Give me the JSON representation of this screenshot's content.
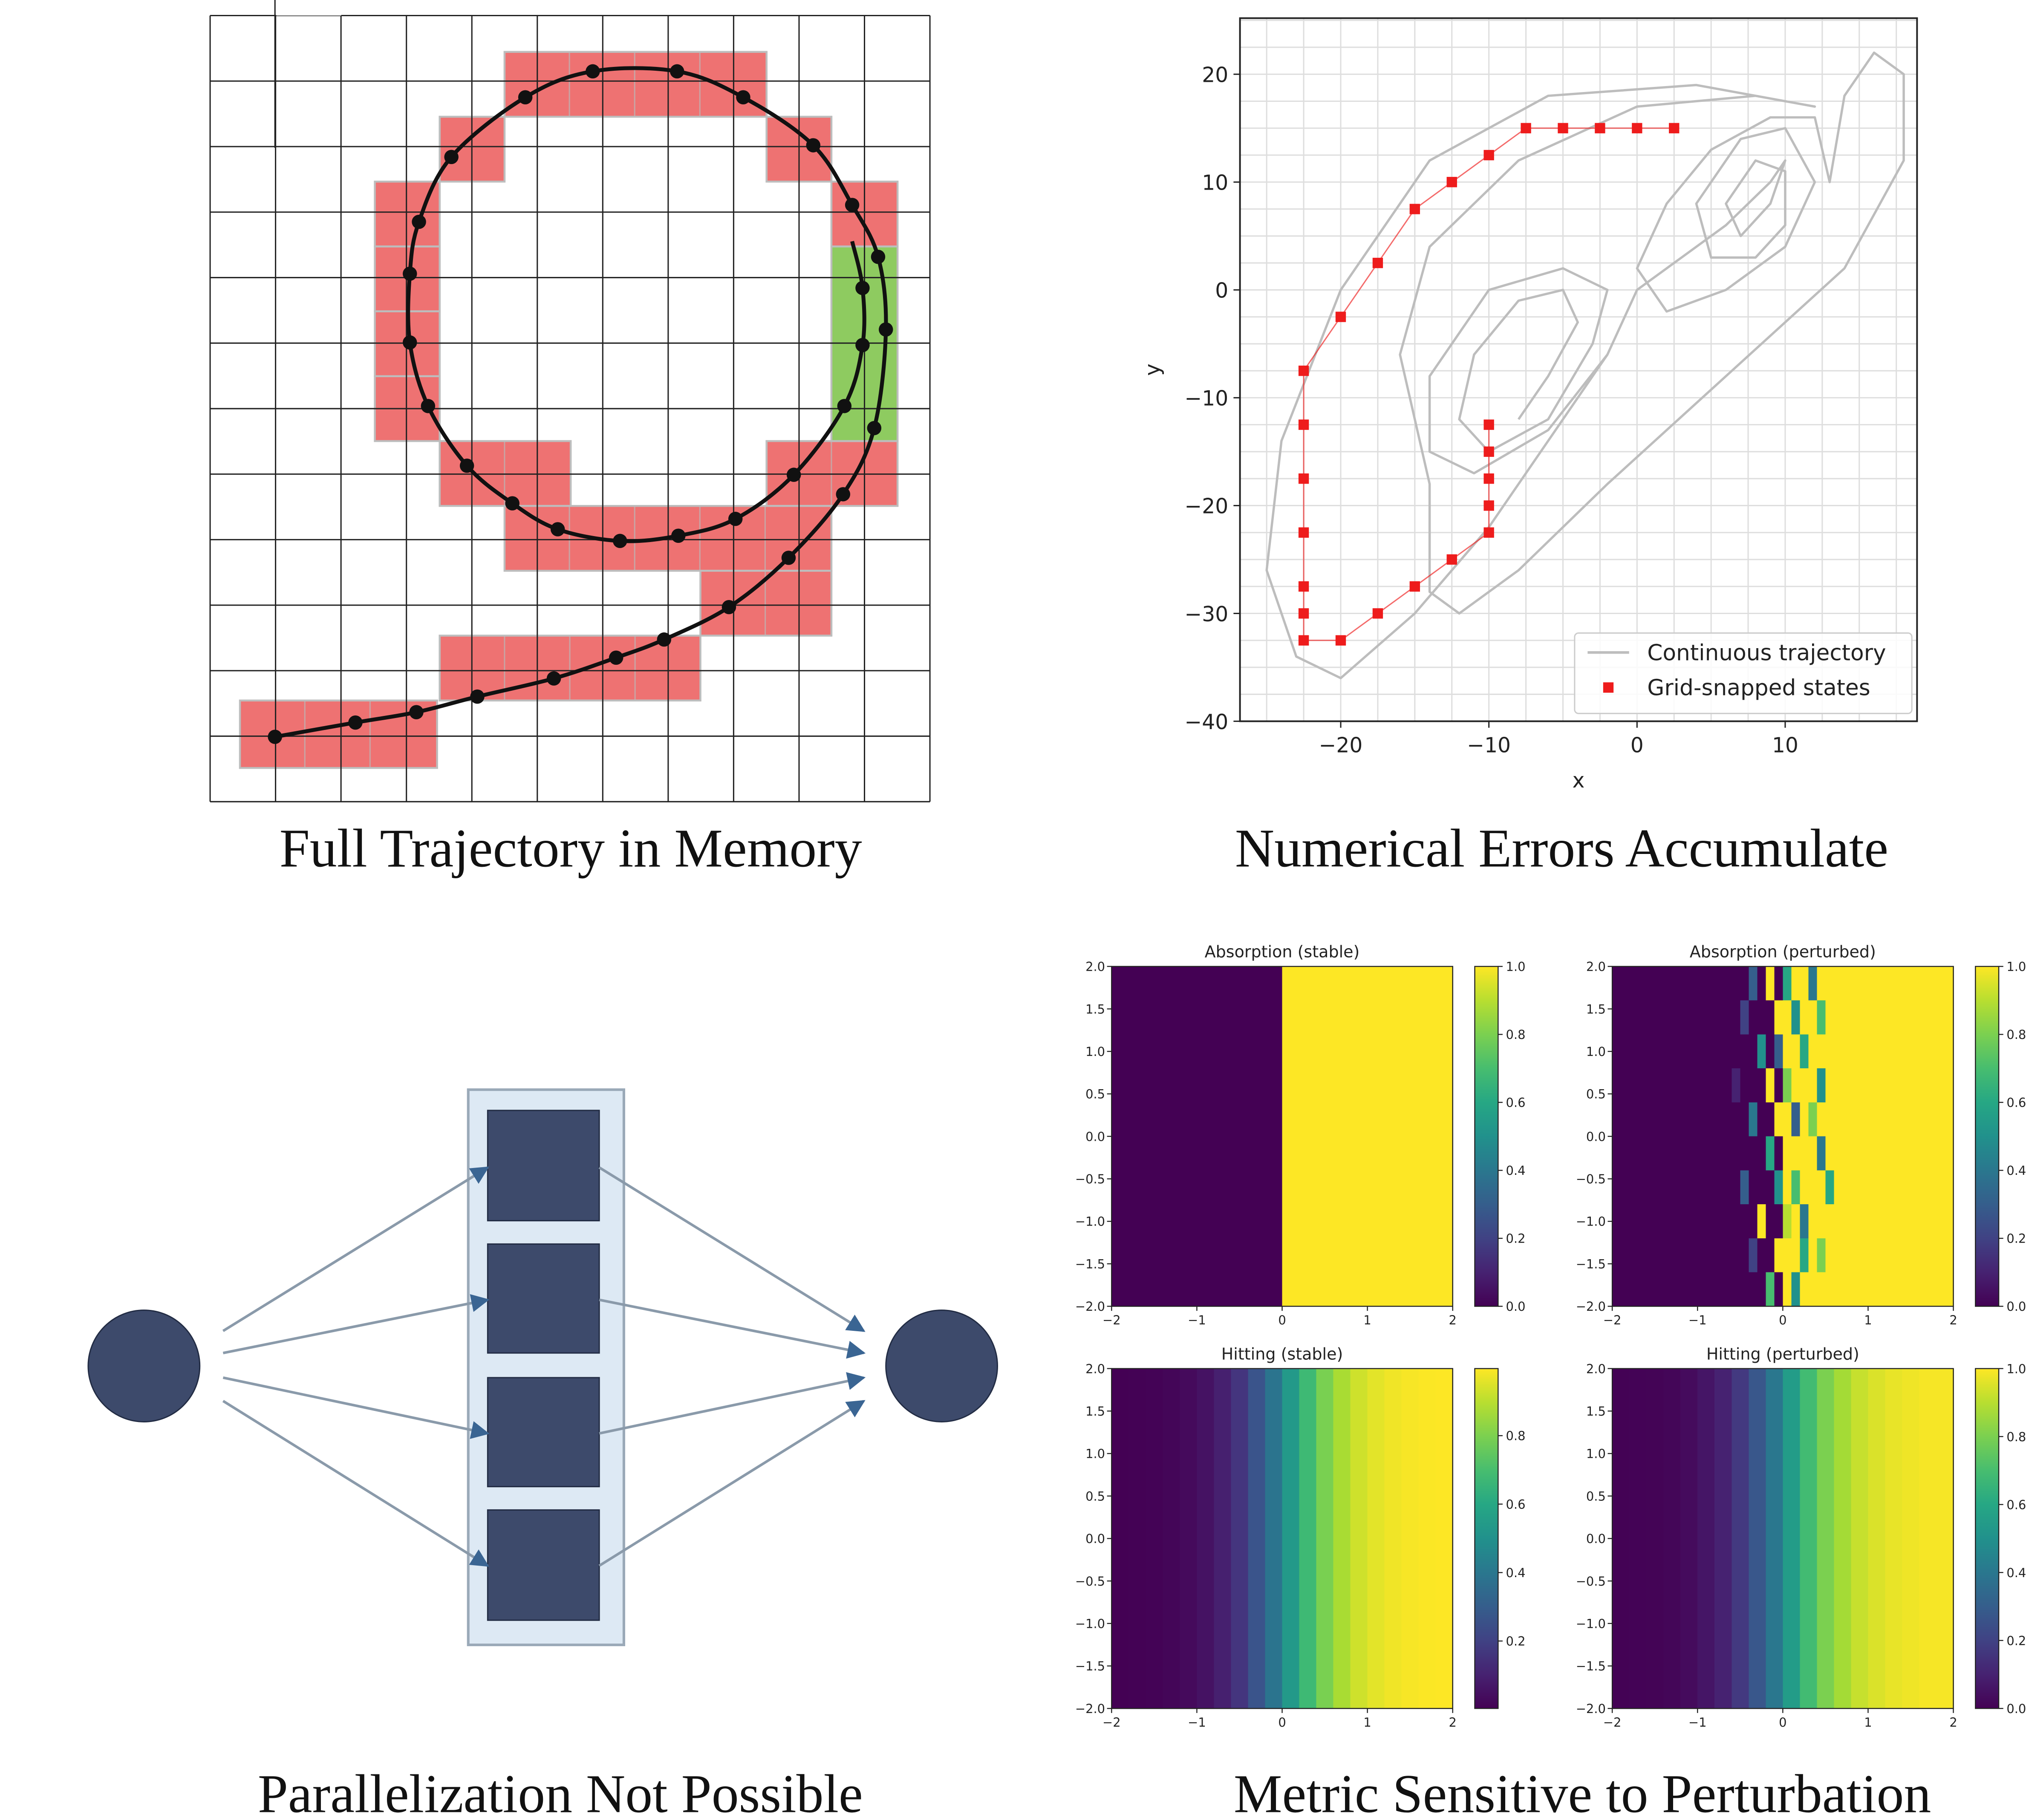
{
  "captions": [
    "Full Trajectory in Memory",
    "Numerical Errors Accumulate",
    "Parallelization Not Possible",
    "Metric Sensitive to Perturbation"
  ],
  "chart_data": [
    {
      "type": "line",
      "xlabel": "x",
      "ylabel": "y",
      "legend": "lower right",
      "grid": true,
      "xlim": [
        -26.8,
        18.9
      ],
      "ylim": [
        -40,
        25.2
      ],
      "xticks": [
        {
          "value": -20,
          "label": "−20"
        },
        {
          "value": -10,
          "label": "−10"
        },
        0,
        10
      ],
      "yticks": [
        {
          "value": -40,
          "label": "−40"
        },
        {
          "value": -30,
          "label": "−30"
        },
        {
          "value": -20,
          "label": "−20"
        },
        {
          "value": -10,
          "label": "−10"
        },
        0,
        10,
        20
      ],
      "xgrid": [
        -25,
        -22.5,
        -20,
        -17.5,
        -15,
        -12.5,
        -10,
        -7.5,
        -5,
        -2.5,
        0,
        2.5,
        5,
        7.5,
        10,
        12.5,
        15,
        17.5
      ],
      "ygrid": [
        -40,
        -37.5,
        -35,
        -32.5,
        -30,
        -27.5,
        -25,
        -22.5,
        -20,
        -17.5,
        -15,
        -12.5,
        -10,
        -7.5,
        -5,
        -2.5,
        0,
        2.5,
        5,
        7.5,
        10,
        12.5,
        15,
        17.5,
        20,
        22.5,
        25
      ],
      "series": [
        {
          "name": "Continuous trajectory",
          "color": "#bdbdbd",
          "x": [
            -8,
            -6,
            -4,
            -5,
            -8,
            -11,
            -12,
            -10,
            -6,
            -3,
            -2,
            -5,
            -10,
            -14,
            -14,
            -11,
            -6,
            -2,
            0,
            3,
            6,
            9,
            10,
            9,
            7,
            6,
            8,
            10,
            10,
            8,
            5,
            4,
            7,
            10,
            12,
            10,
            6,
            2,
            0,
            2,
            5,
            9,
            12,
            13,
            14,
            16,
            18,
            18,
            14,
            6,
            -2,
            -8,
            -12,
            -14,
            -14,
            -16,
            -14,
            -8,
            0,
            8,
            12,
            4,
            -6,
            -14,
            -20,
            -24,
            -25,
            -23,
            -20,
            -15,
            -10,
            -6,
            -2,
            0
          ],
          "values": [
            -12,
            -8,
            -3,
            0,
            -1,
            -6,
            -12,
            -15,
            -12,
            -5,
            0,
            2,
            0,
            -8,
            -15,
            -17,
            -13,
            -6,
            0,
            3,
            6,
            10,
            12,
            8,
            5,
            8,
            12,
            11,
            6,
            3,
            3,
            8,
            14,
            15,
            10,
            4,
            0,
            -2,
            2,
            8,
            13,
            16,
            16,
            10,
            18,
            22,
            20,
            12,
            2,
            -8,
            -18,
            -26,
            -30,
            -28,
            -18,
            -6,
            4,
            12,
            17,
            18,
            17,
            19,
            18,
            12,
            0,
            -14,
            -26,
            -34,
            -36,
            -30,
            -22,
            -14,
            -6,
            0
          ]
        },
        {
          "name": "Grid-snapped states",
          "color": "#ee1c1c",
          "marker": "square",
          "x": [
            2.5,
            0,
            -2.5,
            -5,
            -7.5,
            -10,
            -12.5,
            -15,
            -17.5,
            -20,
            -22.5,
            -22.5,
            -22.5,
            -22.5,
            -22.5,
            -22.5,
            -22.5,
            -20,
            -17.5,
            -15,
            -12.5,
            -10,
            -10,
            -10,
            -10,
            -10
          ],
          "values": [
            15,
            15,
            15,
            15,
            15,
            12.5,
            10,
            7.5,
            2.5,
            -2.5,
            -7.5,
            -12.5,
            -17.5,
            -22.5,
            -27.5,
            -30,
            -32.5,
            -32.5,
            -30,
            -27.5,
            -25,
            -22.5,
            -20,
            -17.5,
            -15,
            -12.5
          ]
        }
      ]
    },
    {
      "type": "heatmap",
      "title": "Absorption (stable)",
      "colormap": "viridis",
      "xlim": [
        -2,
        2
      ],
      "ylim": [
        -2,
        2
      ],
      "clim": [
        0,
        1
      ],
      "xticks": [
        {
          "value": -2,
          "label": "−2"
        },
        {
          "value": -1,
          "label": "−1"
        },
        0,
        1,
        2
      ],
      "yticks": [
        {
          "value": 2,
          "label": "2.0"
        },
        1.5,
        {
          "value": 1,
          "label": "1.0"
        },
        0.5,
        {
          "value": 0,
          "label": "0.0"
        },
        {
          "value": -0.5,
          "label": "−0.5"
        },
        {
          "value": -1,
          "label": "−1.0"
        },
        {
          "value": -1.5,
          "label": "−1.5"
        },
        {
          "value": -2,
          "label": "−2.0"
        }
      ],
      "cticks": [
        {
          "value": 0,
          "label": "0.0"
        },
        0.2,
        0.4,
        0.6,
        0.8,
        {
          "value": 1,
          "label": "1.0"
        }
      ],
      "z": [
        [
          0,
          1
        ]
      ]
    },
    {
      "type": "heatmap",
      "title": "Absorption (perturbed)",
      "colormap": "viridis",
      "xlim": [
        -2,
        2
      ],
      "ylim": [
        -2,
        2
      ],
      "clim": [
        0,
        1
      ],
      "xticks": [
        {
          "value": -2,
          "label": "−2"
        },
        {
          "value": -1,
          "label": "−1"
        },
        0,
        1,
        2
      ],
      "yticks": [
        {
          "value": 2,
          "label": "2.0"
        },
        1.5,
        {
          "value": 1,
          "label": "1.0"
        },
        0.5,
        {
          "value": 0,
          "label": "0.0"
        },
        {
          "value": -0.5,
          "label": "−0.5"
        },
        {
          "value": -1,
          "label": "−1.0"
        },
        {
          "value": -1.5,
          "label": "−1.5"
        },
        {
          "value": -2,
          "label": "−2.0"
        }
      ],
      "cticks": [
        {
          "value": 0,
          "label": "0.0"
        },
        0.2,
        0.4,
        0.6,
        0.8,
        {
          "value": 1,
          "label": "1.0"
        }
      ],
      "z": [
        [
          0,
          0,
          0,
          0,
          0,
          0,
          0,
          0,
          0,
          0,
          0,
          0,
          0,
          0,
          0,
          0,
          0.3,
          0,
          1,
          0,
          0.6,
          1,
          1,
          0.4,
          1,
          1,
          1,
          1,
          1,
          1,
          1,
          1,
          1,
          1,
          1,
          1,
          1,
          1,
          1,
          1
        ],
        [
          0,
          0,
          0,
          0,
          0,
          0,
          0,
          0,
          0,
          0,
          0,
          0,
          0,
          0,
          0,
          0.2,
          0,
          0,
          0,
          1,
          1,
          0.5,
          1,
          1,
          0.7,
          1,
          1,
          1,
          1,
          1,
          1,
          1,
          1,
          1,
          1,
          1,
          1,
          1,
          1,
          1
        ],
        [
          0,
          0,
          0,
          0,
          0,
          0,
          0,
          0,
          0,
          0,
          0,
          0,
          0,
          0,
          0,
          0,
          0,
          0.5,
          0,
          0.3,
          1,
          1,
          0.6,
          1,
          1,
          1,
          1,
          1,
          1,
          1,
          1,
          1,
          1,
          1,
          1,
          1,
          1,
          1,
          1,
          1
        ],
        [
          0,
          0,
          0,
          0,
          0,
          0,
          0,
          0,
          0,
          0,
          0,
          0,
          0,
          0,
          0.1,
          0,
          0,
          0,
          1,
          0,
          0.8,
          1,
          1,
          1,
          0.5,
          1,
          1,
          1,
          1,
          1,
          1,
          1,
          1,
          1,
          1,
          1,
          1,
          1,
          1,
          1
        ],
        [
          0,
          0,
          0,
          0,
          0,
          0,
          0,
          0,
          0,
          0,
          0,
          0,
          0,
          0,
          0,
          0,
          0.4,
          0,
          0,
          1,
          1,
          0.3,
          1,
          0.8,
          1,
          1,
          1,
          1,
          1,
          1,
          1,
          1,
          1,
          1,
          1,
          1,
          1,
          1,
          1,
          1
        ],
        [
          0,
          0,
          0,
          0,
          0,
          0,
          0,
          0,
          0,
          0,
          0,
          0,
          0,
          0,
          0,
          0,
          0,
          0,
          0.6,
          0,
          1,
          1,
          1,
          1,
          0.4,
          1,
          1,
          1,
          1,
          1,
          1,
          1,
          1,
          1,
          1,
          1,
          1,
          1,
          1,
          1
        ],
        [
          0,
          0,
          0,
          0,
          0,
          0,
          0,
          0,
          0,
          0,
          0,
          0,
          0,
          0,
          0,
          0.3,
          0,
          0,
          0,
          0.5,
          1,
          0.7,
          1,
          1,
          1,
          0.6,
          1,
          1,
          1,
          1,
          1,
          1,
          1,
          1,
          1,
          1,
          1,
          1,
          1,
          1
        ],
        [
          0,
          0,
          0,
          0,
          0,
          0,
          0,
          0,
          0,
          0,
          0,
          0,
          0,
          0,
          0,
          0,
          0,
          1,
          0,
          0,
          0.9,
          1,
          0.4,
          1,
          1,
          1,
          1,
          1,
          1,
          1,
          1,
          1,
          1,
          1,
          1,
          1,
          1,
          1,
          1,
          1
        ],
        [
          0,
          0,
          0,
          0,
          0,
          0,
          0,
          0,
          0,
          0,
          0,
          0,
          0,
          0,
          0,
          0,
          0.2,
          0,
          0,
          1,
          1,
          1,
          0.6,
          1,
          0.8,
          1,
          1,
          1,
          1,
          1,
          1,
          1,
          1,
          1,
          1,
          1,
          1,
          1,
          1,
          1
        ],
        [
          0,
          0,
          0,
          0,
          0,
          0,
          0,
          0,
          0,
          0,
          0,
          0,
          0,
          0,
          0,
          0,
          0,
          0,
          0.7,
          0,
          1,
          0.5,
          1,
          1,
          1,
          1,
          1,
          1,
          1,
          1,
          1,
          1,
          1,
          1,
          1,
          1,
          1,
          1,
          1,
          1
        ]
      ]
    },
    {
      "type": "heatmap",
      "title": "Hitting (stable)",
      "colormap": "viridis",
      "xlim": [
        -2,
        2
      ],
      "ylim": [
        -2,
        2
      ],
      "clim": [
        0.003,
        0.996
      ],
      "xticks": [
        {
          "value": -2,
          "label": "−2"
        },
        {
          "value": -1,
          "label": "−1"
        },
        0,
        1,
        2
      ],
      "yticks": [
        {
          "value": 2,
          "label": "2.0"
        },
        1.5,
        {
          "value": 1,
          "label": "1.0"
        },
        0.5,
        {
          "value": 0,
          "label": "0.0"
        },
        {
          "value": -0.5,
          "label": "−0.5"
        },
        {
          "value": -1,
          "label": "−1.0"
        },
        {
          "value": -1.5,
          "label": "−1.5"
        },
        {
          "value": -2,
          "label": "−2.0"
        }
      ],
      "cticks": [
        0.2,
        0.4,
        0.6,
        0.8
      ],
      "z": [
        [
          0.003,
          0.005,
          0.009,
          0.017,
          0.031,
          0.055,
          0.095,
          0.161,
          0.259,
          0.389,
          0.537,
          0.679,
          0.794,
          0.875,
          0.928,
          0.959,
          0.977,
          0.987,
          0.993,
          0.996
        ]
      ]
    },
    {
      "type": "heatmap",
      "title": "Hitting (perturbed)",
      "colormap": "viridis",
      "xlim": [
        -2,
        2
      ],
      "ylim": [
        -2,
        2
      ],
      "clim": [
        0,
        1
      ],
      "xticks": [
        {
          "value": -2,
          "label": "−2"
        },
        {
          "value": -1,
          "label": "−1"
        },
        0,
        1,
        2
      ],
      "yticks": [
        {
          "value": 2,
          "label": "2.0"
        },
        1.5,
        {
          "value": 1,
          "label": "1.0"
        },
        0.5,
        {
          "value": 0,
          "label": "0.0"
        },
        {
          "value": -0.5,
          "label": "−0.5"
        },
        {
          "value": -1,
          "label": "−1.0"
        },
        {
          "value": -1.5,
          "label": "−1.5"
        },
        {
          "value": -2,
          "label": "−2.0"
        }
      ],
      "cticks": [
        {
          "value": 0,
          "label": "0.0"
        },
        0.2,
        0.4,
        0.6,
        0.8,
        {
          "value": 1,
          "label": "1.0"
        }
      ],
      "z": [
        [
          0.004,
          0.006,
          0.008,
          0.015,
          0.03,
          0.06,
          0.1,
          0.17,
          0.27,
          0.4,
          0.55,
          0.69,
          0.8,
          0.87,
          0.92,
          0.95,
          0.97,
          0.98,
          0.99,
          0.99
        ]
      ]
    }
  ]
}
